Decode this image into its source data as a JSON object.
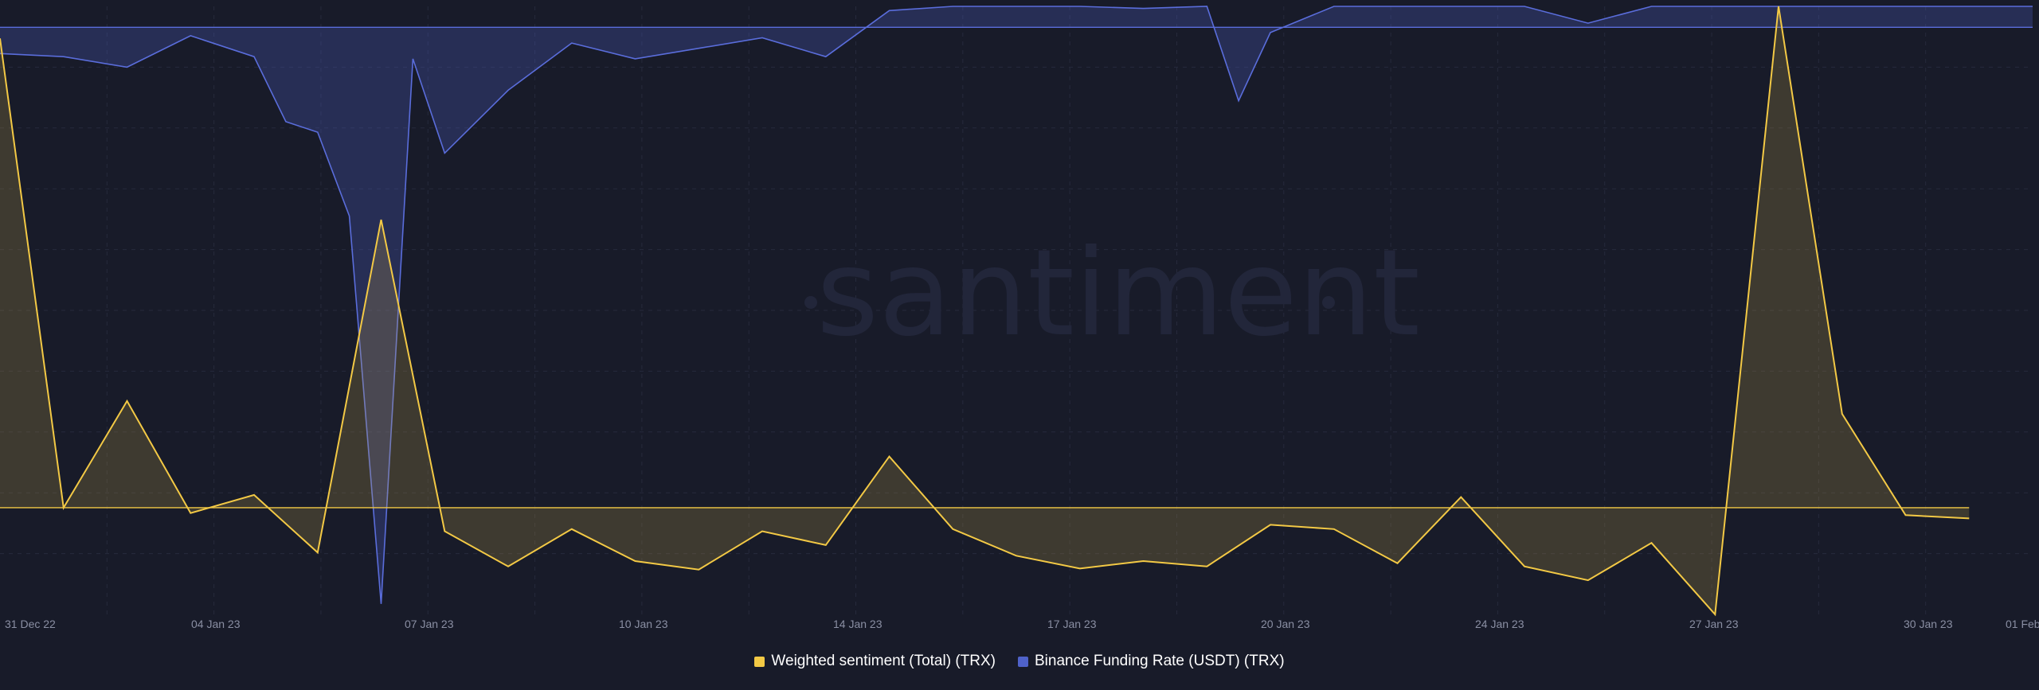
{
  "watermark": "santiment",
  "chart_data": {
    "type": "line",
    "x_ticks": [
      "31 Dec 22",
      "04 Jan 23",
      "07 Jan 23",
      "10 Jan 23",
      "14 Jan 23",
      "17 Jan 23",
      "20 Jan 23",
      "24 Jan 23",
      "27 Jan 23",
      "30 Jan 23",
      "01 Feb"
    ],
    "x_range": [
      "2022-12-31",
      "2023-02-01"
    ],
    "grid": true,
    "legend_placement": "bottom-center",
    "series": [
      {
        "name": "Weighted sentiment (Total) (TRX)",
        "color": "#f3c945",
        "area": true,
        "ylim": [
          -1.0,
          4.7
        ],
        "baseline": 0,
        "points": [
          [
            "2022-12-31",
            4.4
          ],
          [
            "2023-01-01",
            0.0
          ],
          [
            "2023-01-02",
            1.0
          ],
          [
            "2023-01-03",
            -0.05
          ],
          [
            "2023-01-04",
            0.12
          ],
          [
            "2023-01-05",
            -0.42
          ],
          [
            "2023-01-06",
            2.7
          ],
          [
            "2023-01-07",
            -0.22
          ],
          [
            "2023-01-08",
            -0.55
          ],
          [
            "2023-01-09",
            -0.2
          ],
          [
            "2023-01-10",
            -0.5
          ],
          [
            "2023-01-11",
            -0.58
          ],
          [
            "2023-01-12",
            -0.22
          ],
          [
            "2023-01-13",
            -0.35
          ],
          [
            "2023-01-14",
            0.48
          ],
          [
            "2023-01-15",
            -0.2
          ],
          [
            "2023-01-16",
            -0.45
          ],
          [
            "2023-01-17",
            -0.57
          ],
          [
            "2023-01-18",
            -0.5
          ],
          [
            "2023-01-19",
            -0.55
          ],
          [
            "2023-01-20",
            -0.16
          ],
          [
            "2023-01-21",
            -0.2
          ],
          [
            "2023-01-22",
            -0.52
          ],
          [
            "2023-01-23",
            0.1
          ],
          [
            "2023-01-24",
            -0.55
          ],
          [
            "2023-01-25",
            -0.68
          ],
          [
            "2023-01-26",
            -0.33
          ],
          [
            "2023-01-27",
            -1.0
          ],
          [
            "2023-01-28",
            4.7
          ],
          [
            "2023-01-29",
            0.88
          ],
          [
            "2023-01-30",
            -0.07
          ],
          [
            "2023-01-31",
            -0.1
          ]
        ]
      },
      {
        "name": "Binance Funding Rate (USDT) (TRX)",
        "color": "#4f62c9",
        "area": true,
        "ylim": [
          -0.56,
          0.02
        ],
        "baseline": 0,
        "points": [
          [
            "2022-12-31",
            -0.025
          ],
          [
            "2023-01-01",
            -0.028
          ],
          [
            "2023-01-02",
            -0.038
          ],
          [
            "2023-01-03",
            -0.008
          ],
          [
            "2023-01-04",
            -0.028
          ],
          [
            "2023-01-04 12:00",
            -0.09
          ],
          [
            "2023-01-05",
            -0.1
          ],
          [
            "2023-01-05 12:00",
            -0.18
          ],
          [
            "2023-01-06",
            -0.55
          ],
          [
            "2023-01-06 12:00",
            -0.03
          ],
          [
            "2023-01-07",
            -0.12
          ],
          [
            "2023-01-08",
            -0.06
          ],
          [
            "2023-01-09",
            -0.015
          ],
          [
            "2023-01-10",
            -0.03
          ],
          [
            "2023-01-11",
            -0.02
          ],
          [
            "2023-01-12",
            -0.01
          ],
          [
            "2023-01-13",
            -0.028
          ],
          [
            "2023-01-14",
            0.016
          ],
          [
            "2023-01-15",
            0.02
          ],
          [
            "2023-01-16",
            0.02
          ],
          [
            "2023-01-17",
            0.02
          ],
          [
            "2023-01-18",
            0.018
          ],
          [
            "2023-01-19",
            0.02
          ],
          [
            "2023-01-19 12:00",
            -0.07
          ],
          [
            "2023-01-20",
            -0.005
          ],
          [
            "2023-01-21",
            0.02
          ],
          [
            "2023-01-22",
            0.02
          ],
          [
            "2023-01-23",
            0.02
          ],
          [
            "2023-01-24",
            0.02
          ],
          [
            "2023-01-25",
            0.004
          ],
          [
            "2023-01-26",
            0.02
          ],
          [
            "2023-01-27",
            0.02
          ],
          [
            "2023-01-28",
            0.02
          ],
          [
            "2023-01-29",
            0.02
          ],
          [
            "2023-01-30",
            0.02
          ],
          [
            "2023-01-31",
            0.02
          ],
          [
            "2023-02-01",
            0.02
          ]
        ]
      }
    ]
  }
}
